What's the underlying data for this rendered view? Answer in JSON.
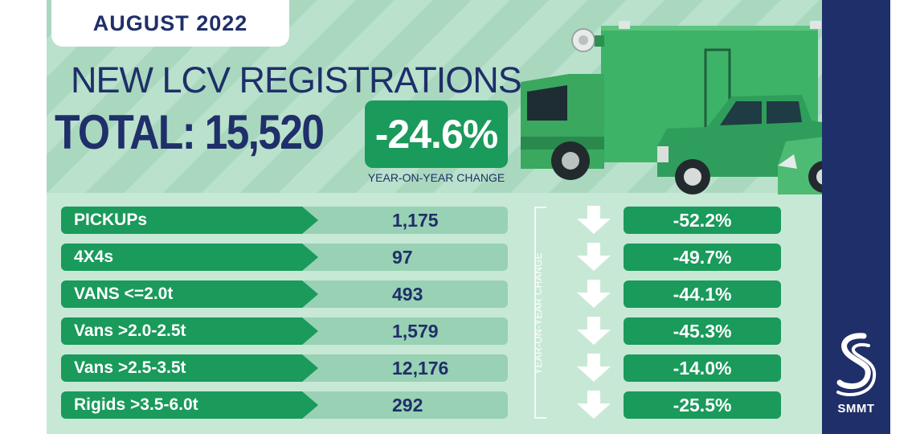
{
  "header": {
    "date": "AUGUST 2022",
    "title": "NEW LCV REGISTRATIONS",
    "total": "TOTAL: 15,520",
    "total_change": "-24.6%",
    "total_change_caption": "YEAR-ON-YEAR CHANGE"
  },
  "table": {
    "side_label": "YEAR-ON-YEAR CHANGE",
    "rows": [
      {
        "label": "PICKUPs",
        "value": "1,175",
        "change": "-52.2%",
        "direction": "down"
      },
      {
        "label": "4X4s",
        "value": "97",
        "change": "-49.7%",
        "direction": "down"
      },
      {
        "label": "VANS <=2.0t",
        "value": "493",
        "change": "-44.1%",
        "direction": "down"
      },
      {
        "label": "Vans >2.0-2.5t",
        "value": "1,579",
        "change": "-45.3%",
        "direction": "down"
      },
      {
        "label": "Vans >2.5-3.5t",
        "value": "12,176",
        "change": "-14.0%",
        "direction": "down"
      },
      {
        "label": "Rigids >3.5-6.0t",
        "value": "292",
        "change": "-25.5%",
        "direction": "down"
      }
    ]
  },
  "brand": {
    "name": "SMMT"
  },
  "colors": {
    "navy": "#1f2f69",
    "green": "#1a9a5b",
    "mint": "#a9d8bf",
    "value_bg": "#98d1b4"
  },
  "icons": [
    "down-arrow-icon",
    "smmt-logo-icon",
    "truck-illustration",
    "pickup-illustration",
    "van-illustration"
  ]
}
